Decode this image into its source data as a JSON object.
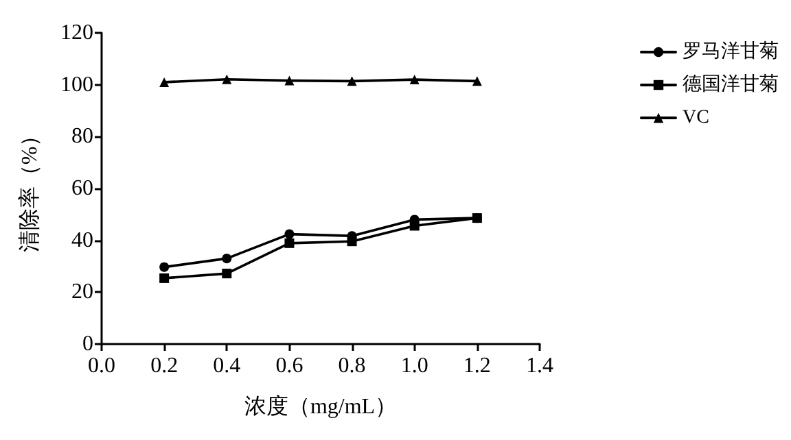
{
  "chart_data": {
    "type": "line",
    "xlabel": "浓度（mg/mL）",
    "ylabel": "清除率（%）",
    "x": [
      0.2,
      0.4,
      0.6,
      0.8,
      1.0,
      1.2
    ],
    "xlim": [
      0,
      1.4
    ],
    "xticks": [
      {
        "value": 0,
        "label": "0.0"
      },
      0.2,
      0.4,
      0.6,
      0.8,
      {
        "value": 1,
        "label": "1.0"
      },
      1.2,
      1.4
    ],
    "ylim": [
      0,
      120
    ],
    "yticks": [
      0,
      20,
      40,
      60,
      80,
      100,
      120
    ],
    "grid": false,
    "legend": "right",
    "line_style": "solid",
    "series": [
      {
        "name": "罗马洋甘菊",
        "color": "#000000",
        "marker": "circle",
        "values": [
          29.7,
          33,
          42.4,
          41.7,
          48,
          48.6
        ]
      },
      {
        "name": "德国洋甘菊",
        "color": "#000000",
        "marker": "square",
        "values": [
          25.4,
          27.2,
          38.9,
          39.6,
          45.6,
          48.6
        ]
      },
      {
        "name": "VC",
        "color": "#000000",
        "marker": "triangle",
        "values": [
          101,
          102.1,
          101.6,
          101.4,
          102,
          101.4
        ]
      }
    ]
  }
}
